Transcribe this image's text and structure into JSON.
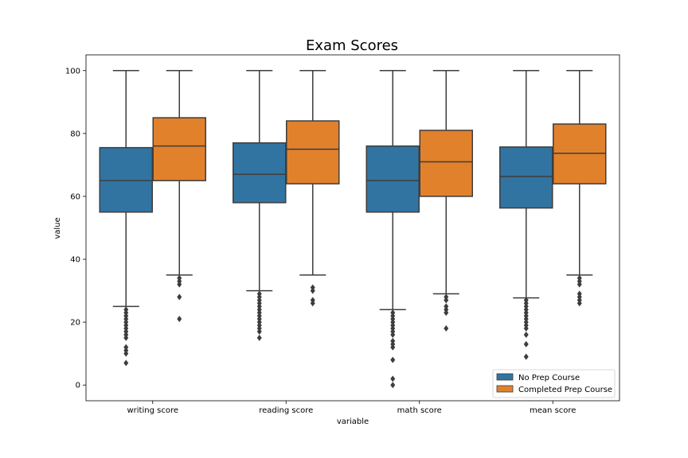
{
  "chart_data": {
    "type": "box",
    "title": "Exam Scores",
    "xlabel": "variable",
    "ylabel": "value",
    "ylim": [
      -5,
      105
    ],
    "yticks": [
      0,
      20,
      40,
      60,
      80,
      100
    ],
    "grid": false,
    "legend_position": "lower-right",
    "categories": [
      "writing score",
      "reading score",
      "math score",
      "mean score"
    ],
    "series": [
      {
        "name": "No Prep Course",
        "color": "#3274a1",
        "boxes": [
          {
            "whisker_low": 25,
            "q1": 55,
            "median": 65,
            "q3": 75.5,
            "whisker_high": 100,
            "outliers": [
              24,
              23,
              22,
              21,
              20,
              19,
              18,
              17,
              16,
              15,
              12,
              11,
              10,
              7
            ]
          },
          {
            "whisker_low": 30,
            "q1": 58,
            "median": 67,
            "q3": 77,
            "whisker_high": 100,
            "outliers": [
              29,
              28,
              27,
              26,
              25,
              24,
              23,
              22,
              21,
              20,
              19,
              18,
              17,
              15
            ]
          },
          {
            "whisker_low": 24,
            "q1": 55,
            "median": 65,
            "q3": 76,
            "whisker_high": 100,
            "outliers": [
              23,
              22,
              21,
              20,
              19,
              18,
              17,
              16,
              14,
              13,
              12,
              8,
              2,
              0
            ]
          },
          {
            "whisker_low": 27.7,
            "q1": 56.3,
            "median": 66.3,
            "q3": 75.7,
            "whisker_high": 100,
            "outliers": [
              27,
              26,
              25,
              24,
              23,
              22,
              21,
              20,
              19,
              18,
              16,
              13,
              9
            ]
          }
        ]
      },
      {
        "name": "Completed Prep Course",
        "color": "#e1812c",
        "boxes": [
          {
            "whisker_low": 35,
            "q1": 65,
            "median": 76,
            "q3": 85,
            "whisker_high": 100,
            "outliers": [
              34,
              33,
              32,
              28,
              21
            ]
          },
          {
            "whisker_low": 35,
            "q1": 64,
            "median": 75,
            "q3": 84,
            "whisker_high": 100,
            "outliers": [
              31,
              30,
              27,
              26
            ]
          },
          {
            "whisker_low": 29,
            "q1": 60,
            "median": 71,
            "q3": 81,
            "whisker_high": 100,
            "outliers": [
              28,
              27,
              25,
              24,
              23,
              18
            ]
          },
          {
            "whisker_low": 35,
            "q1": 64,
            "median": 73.7,
            "q3": 83,
            "whisker_high": 100,
            "outliers": [
              34,
              33,
              32,
              29,
              28,
              27,
              26
            ]
          }
        ]
      }
    ]
  }
}
